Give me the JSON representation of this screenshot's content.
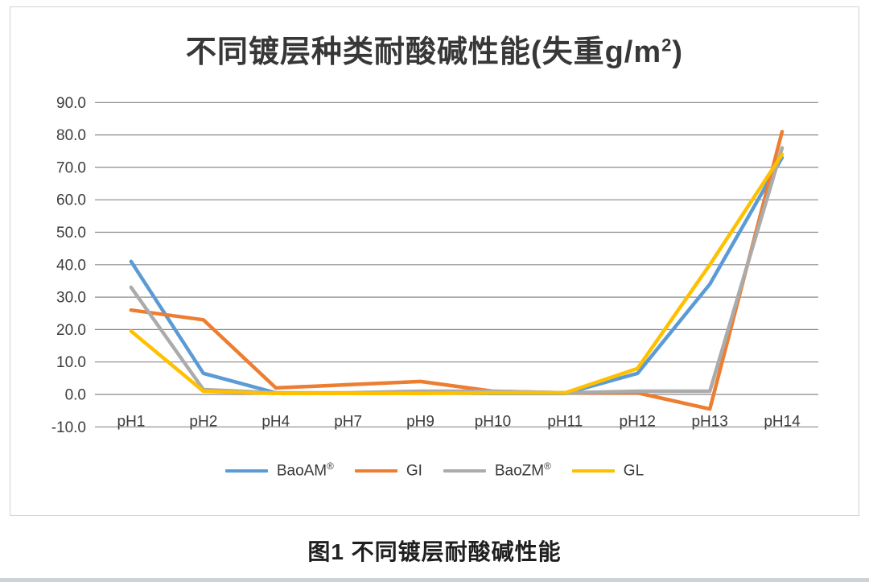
{
  "page": {
    "caption": "图1 不同镀层耐酸碱性能"
  },
  "chart": {
    "title_main": "不同镀层种类耐酸碱性能(失重g/m",
    "title_sup": "2",
    "title_end": ")"
  },
  "chart_data": {
    "type": "line",
    "title": "不同镀层种类耐酸碱性能(失重g/m²)",
    "xlabel": "",
    "ylabel": "",
    "categories": [
      "pH1",
      "pH2",
      "pH4",
      "pH7",
      "pH9",
      "pH10",
      "pH11",
      "pH12",
      "pH13",
      "pH14"
    ],
    "series": [
      {
        "name": "BaoAM®",
        "label": "BaoAM",
        "reg": "®",
        "color": "#5B9BD5",
        "values": [
          41,
          6.5,
          0.5,
          0.3,
          0.5,
          0.3,
          0.3,
          6.5,
          34,
          73
        ]
      },
      {
        "name": "GI",
        "label": "GI",
        "reg": "",
        "color": "#ED7D31",
        "values": [
          26,
          23,
          2,
          3,
          4,
          1,
          0.5,
          0.5,
          -4.5,
          81
        ]
      },
      {
        "name": "BaoZM®",
        "label": "BaoZM",
        "reg": "®",
        "color": "#ABABAB",
        "values": [
          33,
          1.5,
          0.5,
          0.5,
          1,
          1,
          0.5,
          1,
          1,
          76
        ]
      },
      {
        "name": "GL",
        "label": "GL",
        "reg": "",
        "color": "#FFC000",
        "values": [
          19.5,
          1,
          0.3,
          0.3,
          0.3,
          0.5,
          0.5,
          8,
          40,
          74
        ]
      }
    ],
    "ylim": [
      -10,
      90
    ],
    "ytick_step": 10,
    "ytick_labels": [
      "90.0",
      "80.0",
      "70.0",
      "60.0",
      "50.0",
      "40.0",
      "30.0",
      "20.0",
      "10.0",
      "0.0",
      "-10.0"
    ],
    "grid": true,
    "grid_color": "#898989",
    "legend_position": "bottom",
    "line_width": 4.5
  }
}
